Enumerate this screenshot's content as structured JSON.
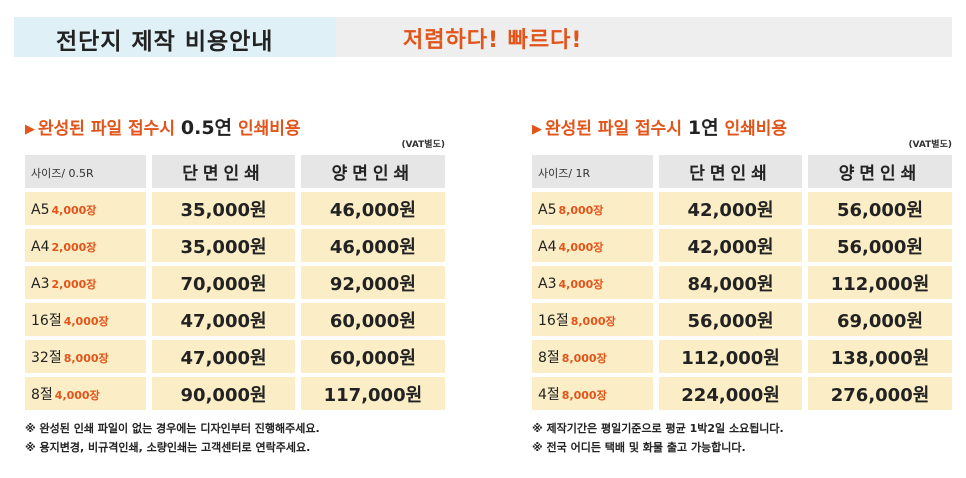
{
  "header": {
    "title": "전단지 제작 비용안내",
    "slogan": "저렴하다! 빠르다!"
  },
  "colors": {
    "accent": "#e2541a",
    "row_fill": "#fbeec6",
    "header_fill": "#e6e6e6",
    "title_box": "#dff0f7"
  },
  "left": {
    "title_prefix": "완성된 파일 접수시",
    "title_qty": "0.5연",
    "title_suffix": "인쇄비용",
    "vat": "(VAT별도)",
    "col_size": "사이즈/ 0.5R",
    "col_single": "단면인쇄",
    "col_double": "양면인쇄",
    "rows": [
      {
        "size": "A5",
        "qty": "4,000장",
        "single": "35,000원",
        "double": "46,000원"
      },
      {
        "size": "A4",
        "qty": "2,000장",
        "single": "35,000원",
        "double": "46,000원"
      },
      {
        "size": "A3",
        "qty": "2,000장",
        "single": "70,000원",
        "double": "92,000원"
      },
      {
        "size": "16절",
        "qty": "4,000장",
        "single": "47,000원",
        "double": "60,000원"
      },
      {
        "size": "32절",
        "qty": "8,000장",
        "single": "47,000원",
        "double": "60,000원"
      },
      {
        "size": "8절",
        "qty": "4,000장",
        "single": "90,000원",
        "double": "117,000원"
      }
    ],
    "notes": [
      "※ 완성된 인쇄 파일이 없는 경우에는 디자인부터 진행해주세요.",
      "※ 용지변경, 비규격인쇄, 소량인쇄는 고객센터로 연락주세요."
    ]
  },
  "right": {
    "title_prefix": "완성된 파일 접수시",
    "title_qty": "1연",
    "title_suffix": "인쇄비용",
    "vat": "(VAT별도)",
    "col_size": "사이즈/ 1R",
    "col_single": "단면인쇄",
    "col_double": "양면인쇄",
    "rows": [
      {
        "size": "A5",
        "qty": "8,000장",
        "single": "42,000원",
        "double": "56,000원"
      },
      {
        "size": "A4",
        "qty": "4,000장",
        "single": "42,000원",
        "double": "56,000원"
      },
      {
        "size": "A3",
        "qty": "4,000장",
        "single": "84,000원",
        "double": "112,000원"
      },
      {
        "size": "16절",
        "qty": "8,000장",
        "single": "56,000원",
        "double": "69,000원"
      },
      {
        "size": "8절",
        "qty": "8,000장",
        "single": "112,000원",
        "double": "138,000원"
      },
      {
        "size": "4절",
        "qty": "8,000장",
        "single": "224,000원",
        "double": "276,000원"
      }
    ],
    "notes": [
      "※ 제작기간은 평일기준으로 평균 1박2일 소요됩니다.",
      "※ 전국 어디든 택배 및 화물 출고 가능합니다."
    ]
  }
}
